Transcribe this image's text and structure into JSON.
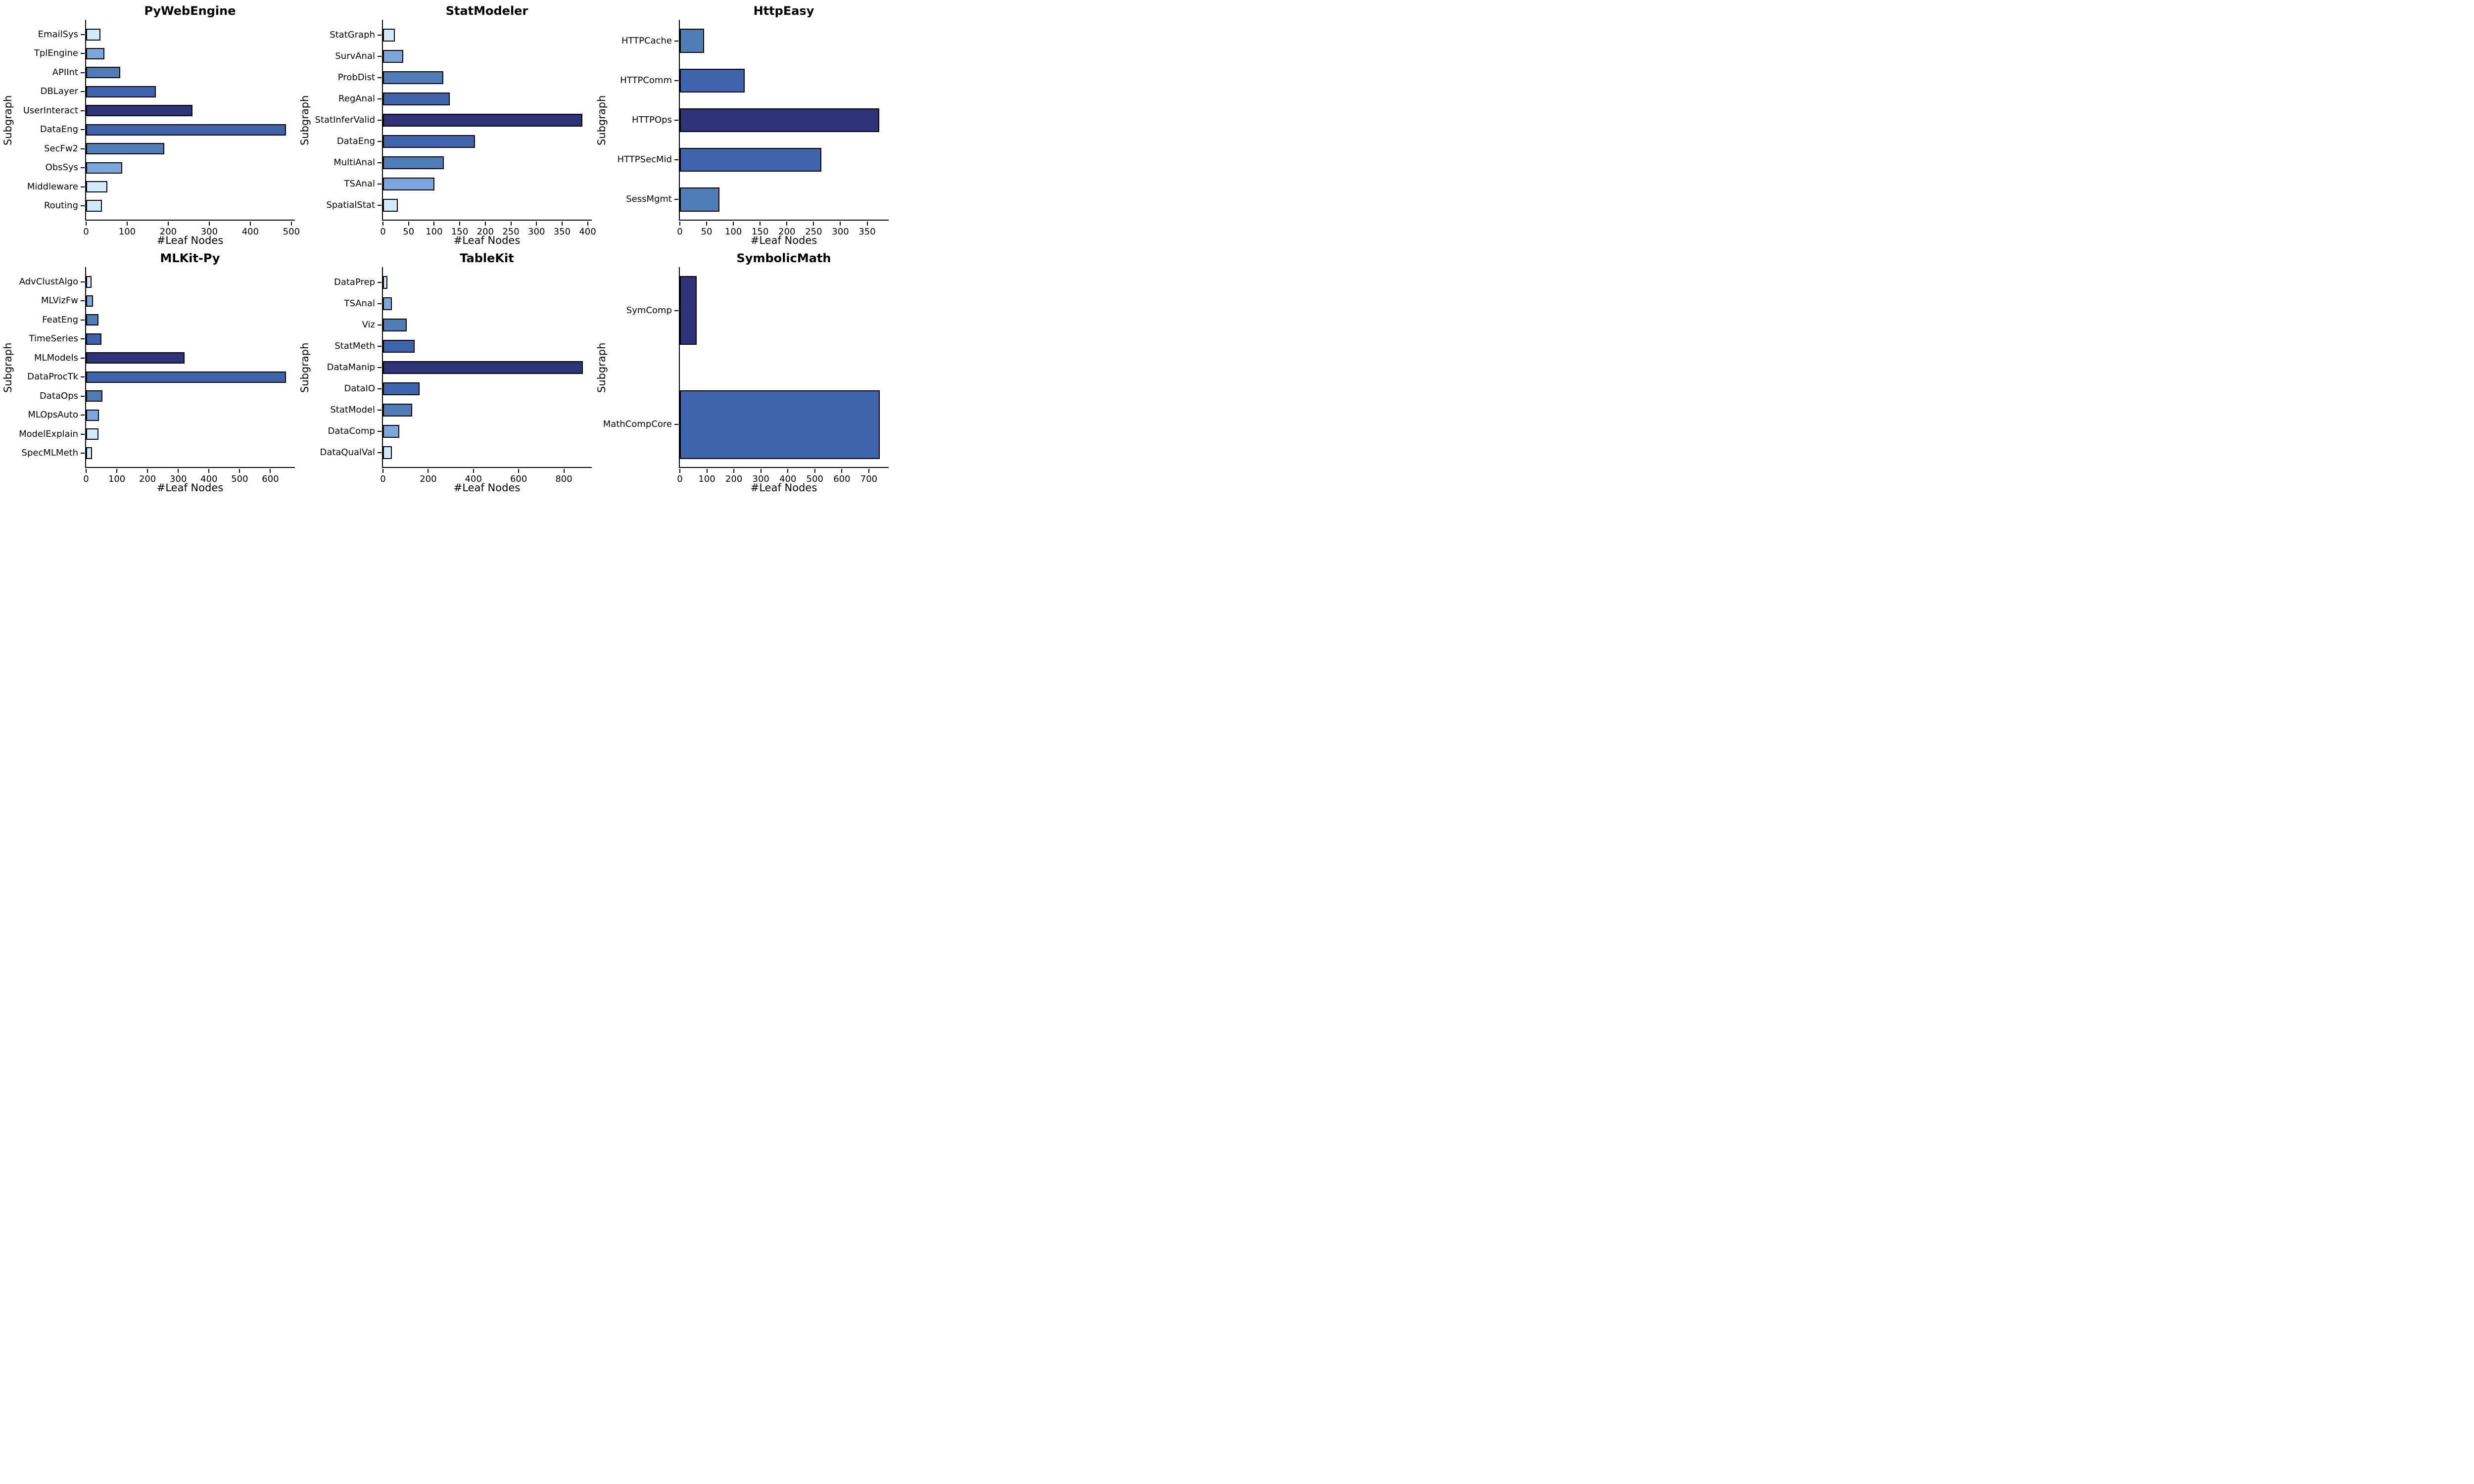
{
  "figure": {
    "background": "#ffffff",
    "text_color": "#000000",
    "bar_edge_color": "#000000",
    "palette": {
      "very_light_blue": "#d2ebfa",
      "light_blue": "#7ba6de",
      "steel_blue": "#4d7cb7",
      "medium_dark_blue": "#3d63ac",
      "navy": "#2e3278"
    }
  },
  "chart_data": [
    {
      "type": "bar",
      "orientation": "horizontal",
      "title": "PyWebEngine",
      "xlabel": "#Leaf Nodes",
      "ylabel": "Subgraph",
      "grid": false,
      "legend": null,
      "categories": [
        "EmailSys",
        "TplEngine",
        "APIInt",
        "DBLayer",
        "UserInteract",
        "DataEng",
        "SecFw2",
        "ObsSys",
        "Middleware",
        "Routing"
      ],
      "values": [
        35,
        44,
        83,
        170,
        259,
        487,
        190,
        88,
        52,
        38
      ],
      "bar_colors": [
        "#d2ebfa",
        "#7ba6de",
        "#4d7cb7",
        "#3d63ac",
        "#2e3278",
        "#3d63ac",
        "#4d7cb7",
        "#7ba6de",
        "#d2ebfa",
        "#d2ebfa"
      ],
      "xlim": [
        0,
        511
      ],
      "xticks": [
        0,
        100,
        200,
        300,
        400,
        500
      ]
    },
    {
      "type": "bar",
      "orientation": "horizontal",
      "title": "StatModeler",
      "xlabel": "#Leaf Nodes",
      "ylabel": "Subgraph",
      "grid": false,
      "legend": null,
      "categories": [
        "StatGraph",
        "SurvAnal",
        "ProbDist",
        "RegAnal",
        "StatInferValid",
        "DataEng",
        "MultiAnal",
        "TSAnal",
        "SpatialStat"
      ],
      "values": [
        23,
        40,
        118,
        131,
        390,
        180,
        119,
        101,
        29
      ],
      "bar_colors": [
        "#d2ebfa",
        "#7ba6de",
        "#4d7cb7",
        "#3d63ac",
        "#2e3278",
        "#3d63ac",
        "#4d7cb7",
        "#7ba6de",
        "#d2ebfa"
      ],
      "xlim": [
        0,
        410
      ],
      "xticks": [
        0,
        50,
        100,
        150,
        200,
        250,
        300,
        350,
        400
      ]
    },
    {
      "type": "bar",
      "orientation": "horizontal",
      "title": "HttpEasy",
      "xlabel": "#Leaf Nodes",
      "ylabel": "Subgraph",
      "grid": false,
      "legend": null,
      "categories": [
        "HTTPCache",
        "HTTPComm",
        "HTTPOps",
        "HTTPSecMid",
        "SessMgmt"
      ],
      "values": [
        45,
        121,
        373,
        264,
        74
      ],
      "bar_colors": [
        "#4d7cb7",
        "#3d63ac",
        "#2e3278",
        "#3d63ac",
        "#4d7cb7"
      ],
      "xlim": [
        0,
        392
      ],
      "xticks": [
        0,
        50,
        100,
        150,
        200,
        250,
        300,
        350
      ]
    },
    {
      "type": "bar",
      "orientation": "horizontal",
      "title": "MLKit-Py",
      "xlabel": "#Leaf Nodes",
      "ylabel": "Subgraph",
      "grid": false,
      "legend": null,
      "categories": [
        "AdvClustAlgo",
        "MLVizFw",
        "FeatEng",
        "TimeSeries",
        "MLModels",
        "DataProcTk",
        "DataOps",
        "MLOpsAuto",
        "ModelExplain",
        "SpecMLMeth"
      ],
      "values": [
        18,
        22,
        41,
        50,
        320,
        651,
        53,
        42,
        40,
        20
      ],
      "bar_colors": [
        "#d2ebfa",
        "#7ba6de",
        "#4d7cb7",
        "#3d63ac",
        "#2e3278",
        "#3d63ac",
        "#4d7cb7",
        "#7ba6de",
        "#d2ebfa",
        "#d2ebfa"
      ],
      "xlim": [
        0,
        683
      ],
      "xticks": [
        0,
        100,
        200,
        300,
        400,
        500,
        600
      ]
    },
    {
      "type": "bar",
      "orientation": "horizontal",
      "title": "TableKit",
      "xlabel": "#Leaf Nodes",
      "ylabel": "Subgraph",
      "grid": false,
      "legend": null,
      "categories": [
        "DataPrep",
        "TSAnal",
        "Viz",
        "StatMeth",
        "DataManip",
        "DataIO",
        "StatModel",
        "DataComp",
        "DataQualVal"
      ],
      "values": [
        20,
        39,
        106,
        140,
        884,
        162,
        130,
        73,
        39
      ],
      "bar_colors": [
        "#d2ebfa",
        "#7ba6de",
        "#4d7cb7",
        "#3d63ac",
        "#2e3278",
        "#3d63ac",
        "#4d7cb7",
        "#7ba6de",
        "#d2ebfa"
      ],
      "xlim": [
        0,
        928
      ],
      "xticks": [
        0,
        200,
        400,
        600,
        800
      ]
    },
    {
      "type": "bar",
      "orientation": "horizontal",
      "title": "SymbolicMath",
      "xlabel": "#Leaf Nodes",
      "ylabel": "Subgraph",
      "grid": false,
      "legend": null,
      "categories": [
        "SymComp",
        "MathCompCore"
      ],
      "values": [
        63,
        740
      ],
      "bar_colors": [
        "#2e3278",
        "#3d63ac"
      ],
      "xlim": [
        0,
        777
      ],
      "xticks": [
        0,
        100,
        200,
        300,
        400,
        500,
        600,
        700
      ]
    }
  ]
}
